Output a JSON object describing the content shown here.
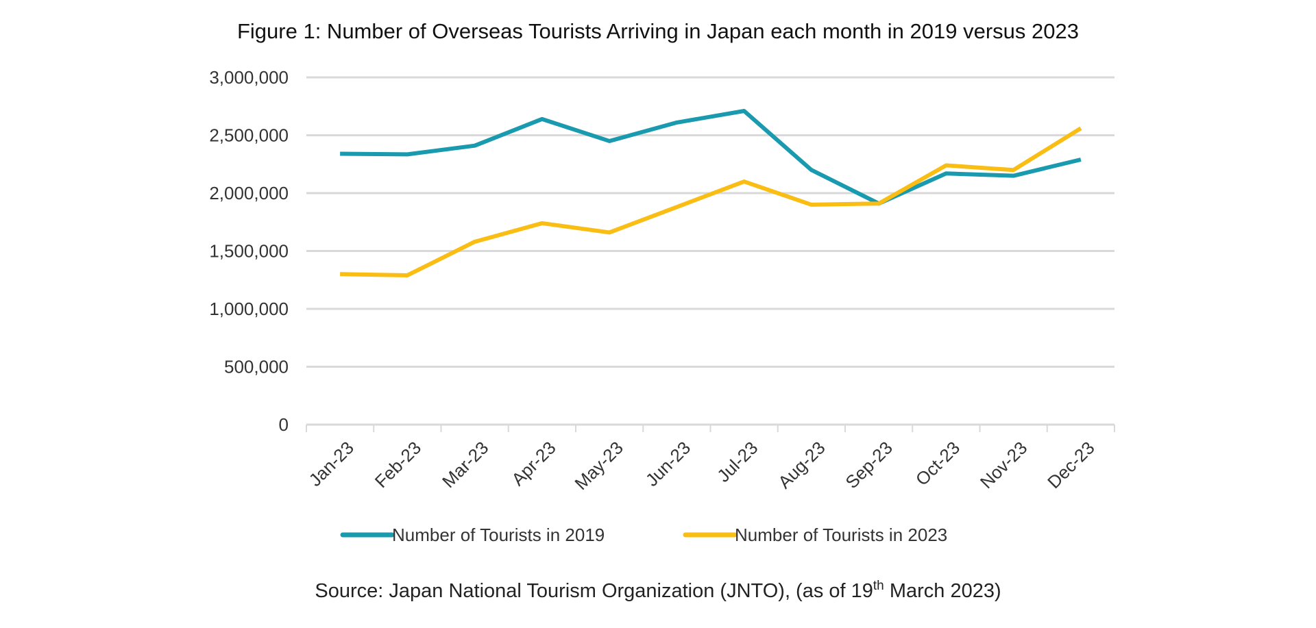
{
  "chart_data": {
    "type": "line",
    "title": "Figure 1: Number of Overseas Tourists Arriving in Japan each month in 2019 versus 2023",
    "xlabel": "",
    "ylabel": "",
    "categories": [
      "Jan-23",
      "Feb-23",
      "Mar-23",
      "Apr-23",
      "May-23",
      "Jun-23",
      "Jul-23",
      "Aug-23",
      "Sep-23",
      "Oct-23",
      "Nov-23",
      "Dec-23"
    ],
    "ylim": [
      0,
      3000000
    ],
    "yticks": [
      "0",
      "500,000",
      "1,000,000",
      "1,500,000",
      "2,000,000",
      "2,500,000",
      "3,000,000"
    ],
    "grid": true,
    "legend_position": "bottom",
    "series": [
      {
        "name": "Number of Tourists in 2019",
        "color": "#1a9aae",
        "values": [
          2340000,
          2335000,
          2410000,
          2640000,
          2450000,
          2610000,
          2710000,
          2200000,
          1910000,
          2170000,
          2150000,
          2290000
        ]
      },
      {
        "name": "Number of Tourists in 2023",
        "color": "#f9bd14",
        "values": [
          1300000,
          1290000,
          1580000,
          1740000,
          1660000,
          1880000,
          2100000,
          1900000,
          1910000,
          2240000,
          2200000,
          2560000
        ]
      }
    ],
    "source": {
      "prefix": "Source: Japan National Tourism Organization (JNTO), (as of 19",
      "sup": "th",
      "suffix": " March 2023)"
    }
  }
}
